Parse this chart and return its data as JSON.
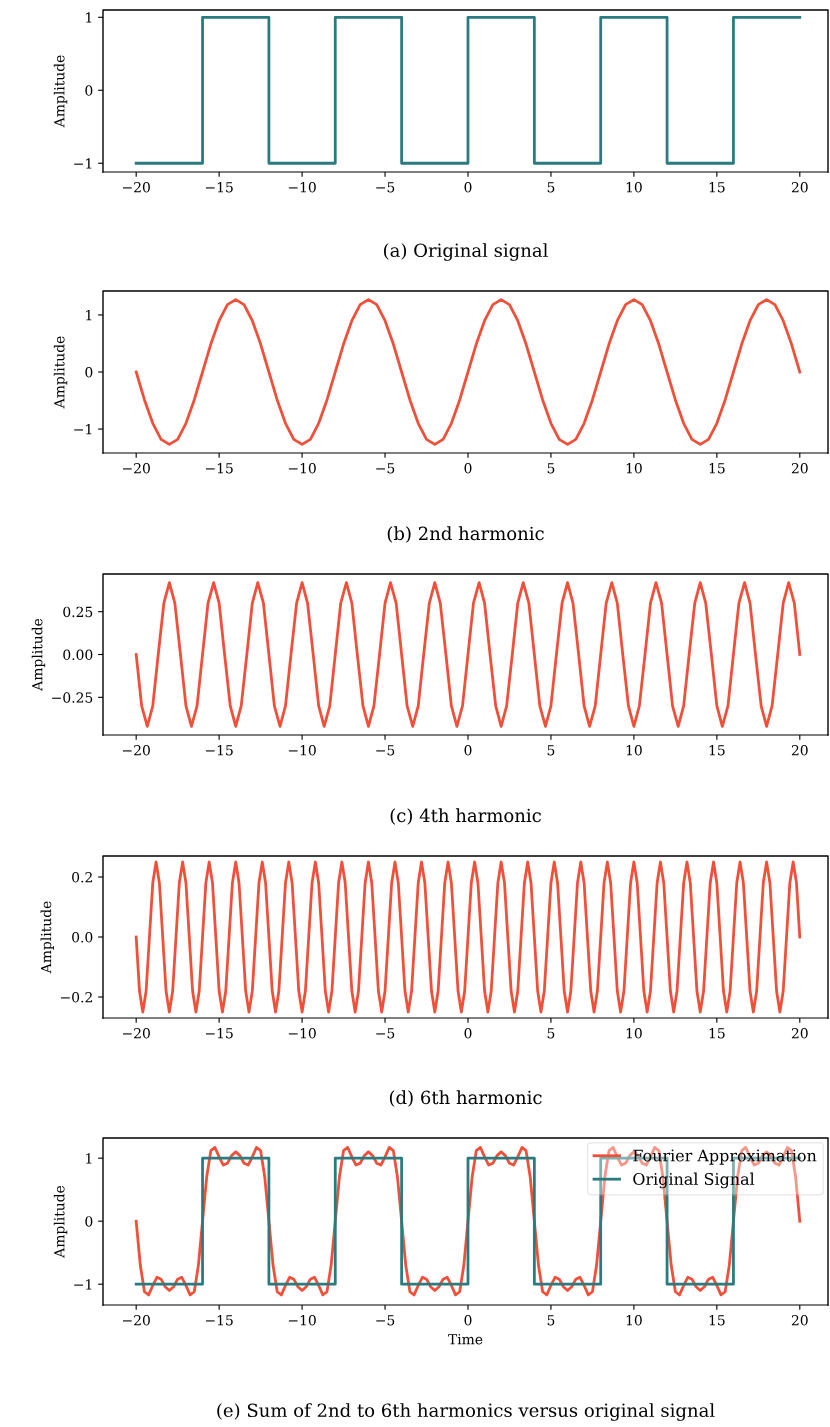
{
  "chart_data": [
    {
      "type": "step",
      "title": "(a) Original signal",
      "ylabel": "Amplitude",
      "xlim": [
        -22,
        21.7
      ],
      "ylim": [
        -1.12,
        1.1
      ],
      "xticks": [
        {
          "value": -20,
          "label": "−20"
        },
        {
          "value": -15,
          "label": "−15"
        },
        {
          "value": -10,
          "label": "−10"
        },
        {
          "value": -5,
          "label": "−5"
        },
        0,
        5,
        10,
        15,
        20
      ],
      "yticks": [
        {
          "value": -1,
          "label": "−1"
        },
        0,
        1
      ],
      "grid": false,
      "legend": false,
      "marker": "none",
      "line_style": "solid",
      "series": [
        {
          "color": "#2a7b7f",
          "x": [
            -20,
            -16,
            -12,
            -8,
            -4,
            0,
            4,
            8,
            12,
            16,
            20
          ],
          "values": [
            -1,
            1,
            -1,
            1,
            -1,
            1,
            -1,
            1,
            -1,
            1,
            1
          ]
        }
      ]
    },
    {
      "type": "line",
      "title": "(b) 2nd harmonic",
      "ylabel": "Amplitude",
      "xlim": [
        -22,
        21.7
      ],
      "ylim": [
        -1.42,
        1.42
      ],
      "xticks": [
        {
          "value": -20,
          "label": "−20"
        },
        {
          "value": -15,
          "label": "−15"
        },
        {
          "value": -10,
          "label": "−10"
        },
        {
          "value": -5,
          "label": "−5"
        },
        0,
        5,
        10,
        15,
        20
      ],
      "yticks": [
        {
          "value": -1,
          "label": "−1"
        },
        0,
        1
      ],
      "grid": false,
      "legend": false,
      "marker": "none",
      "line_style": "solid",
      "series": [
        {
          "color": "#f05039",
          "x": [
            -20,
            -19.5,
            -19,
            -18.5,
            -18,
            -17.5,
            -17,
            -16.5,
            -16,
            -15.5,
            -15,
            -14.5,
            -14,
            -13.5,
            -13,
            -12.5,
            -12,
            -11.5,
            -11,
            -10.5,
            -10,
            -9.5,
            -9,
            -8.5,
            -8,
            -7.5,
            -7,
            -6.5,
            -6,
            -5.5,
            -5,
            -4.5,
            -4,
            -3.5,
            -3,
            -2.5,
            -2,
            -1.5,
            -1,
            -0.5,
            0,
            0.5,
            1,
            1.5,
            2,
            2.5,
            3,
            3.5,
            4,
            4.5,
            5,
            5.5,
            6,
            6.5,
            7,
            7.5,
            8,
            8.5,
            9,
            9.5,
            10,
            10.5,
            11,
            11.5,
            12,
            12.5,
            13,
            13.5,
            14,
            14.5,
            15,
            15.5,
            16,
            16.5,
            17,
            17.5,
            18,
            18.5,
            19,
            19.5,
            20
          ],
          "values": [
            0,
            -0.49,
            -0.9,
            -1.18,
            -1.27,
            -1.18,
            -0.9,
            -0.49,
            0,
            0.49,
            0.9,
            1.18,
            1.27,
            1.18,
            0.9,
            0.49,
            0,
            -0.49,
            -0.9,
            -1.18,
            -1.27,
            -1.18,
            -0.9,
            -0.49,
            0,
            0.49,
            0.9,
            1.18,
            1.27,
            1.18,
            0.9,
            0.49,
            0,
            -0.49,
            -0.9,
            -1.18,
            -1.27,
            -1.18,
            -0.9,
            -0.49,
            0,
            0.49,
            0.9,
            1.18,
            1.27,
            1.18,
            0.9,
            0.49,
            0,
            -0.49,
            -0.9,
            -1.18,
            -1.27,
            -1.18,
            -0.9,
            -0.49,
            0,
            0.49,
            0.9,
            1.18,
            1.27,
            1.18,
            0.9,
            0.49,
            0,
            -0.49,
            -0.9,
            -1.18,
            -1.27,
            -1.18,
            -0.9,
            -0.49,
            0,
            0.49,
            0.9,
            1.18,
            1.27,
            1.18,
            0.9,
            0.49,
            0
          ]
        }
      ]
    },
    {
      "type": "line",
      "title": "(c) 4th harmonic",
      "ylabel": "Amplitude",
      "xlim": [
        -22,
        21.7
      ],
      "ylim": [
        -0.47,
        0.47
      ],
      "xticks": [
        {
          "value": -20,
          "label": "−20"
        },
        {
          "value": -15,
          "label": "−15"
        },
        {
          "value": -10,
          "label": "−10"
        },
        {
          "value": -5,
          "label": "−5"
        },
        0,
        5,
        10,
        15,
        20
      ],
      "yticks": [
        {
          "value": -0.25,
          "label": "−0.25"
        },
        {
          "value": 0,
          "label": "0.00"
        },
        0.25
      ],
      "grid": false,
      "legend": false,
      "marker": "none",
      "line_style": "solid",
      "series": [
        {
          "color": "#f05039",
          "x": [
            -20,
            -19.67,
            -19.33,
            -19,
            -18.67,
            -18.33,
            -18,
            -17.67,
            -17.33,
            -17,
            -16.67,
            -16.33,
            -16,
            -15.67,
            -15.33,
            -15,
            -14.67,
            -14.33,
            -14,
            -13.67,
            -13.33,
            -13,
            -12.67,
            -12.33,
            -12,
            -11.67,
            -11.33,
            -11,
            -10.67,
            -10.33,
            -10,
            -9.67,
            -9.33,
            -9,
            -8.67,
            -8.33,
            -8,
            -7.67,
            -7.33,
            -7,
            -6.67,
            -6.33,
            -6,
            -5.67,
            -5.33,
            -5,
            -4.67,
            -4.33,
            -4,
            -3.67,
            -3.33,
            -3,
            -2.67,
            -2.33,
            -2,
            -1.67,
            -1.33,
            -1,
            -0.67,
            -0.33,
            0,
            0.33,
            0.67,
            1,
            1.33,
            1.67,
            2,
            2.33,
            2.67,
            3,
            3.33,
            3.67,
            4,
            4.33,
            4.67,
            5,
            5.33,
            5.67,
            6,
            6.33,
            6.67,
            7,
            7.33,
            7.67,
            8,
            8.33,
            8.67,
            9,
            9.33,
            9.67,
            10,
            10.33,
            10.67,
            11,
            11.33,
            11.67,
            12,
            12.33,
            12.67,
            13,
            13.33,
            13.67,
            14,
            14.33,
            14.67,
            15,
            15.33,
            15.67,
            16,
            16.33,
            16.67,
            17,
            17.33,
            17.67,
            18,
            18.33,
            18.67,
            19,
            19.33,
            19.67,
            20
          ],
          "values": [
            0,
            -0.3,
            -0.42,
            -0.3,
            0,
            0.3,
            0.42,
            0.3,
            0,
            -0.3,
            -0.42,
            -0.3,
            0,
            0.3,
            0.42,
            0.3,
            0,
            -0.3,
            -0.42,
            -0.3,
            0,
            0.3,
            0.42,
            0.3,
            0,
            -0.3,
            -0.42,
            -0.3,
            0,
            0.3,
            0.42,
            0.3,
            0,
            -0.3,
            -0.42,
            -0.3,
            0,
            0.3,
            0.42,
            0.3,
            0,
            -0.3,
            -0.42,
            -0.3,
            0,
            0.3,
            0.42,
            0.3,
            0,
            -0.3,
            -0.42,
            -0.3,
            0,
            0.3,
            0.42,
            0.3,
            0,
            -0.3,
            -0.42,
            -0.3,
            0,
            0.3,
            0.42,
            0.3,
            0,
            -0.3,
            -0.42,
            -0.3,
            0,
            0.3,
            0.42,
            0.3,
            0,
            -0.3,
            -0.42,
            -0.3,
            0,
            0.3,
            0.42,
            0.3,
            0,
            -0.3,
            -0.42,
            -0.3,
            0,
            0.3,
            0.42,
            0.3,
            0,
            -0.3,
            -0.42,
            -0.3,
            0,
            0.3,
            0.42,
            0.3,
            0,
            -0.3,
            -0.42,
            -0.3,
            0,
            0.3,
            0.42,
            0.3,
            0,
            -0.3,
            -0.42,
            -0.3,
            0,
            0.3,
            0.42,
            0.3,
            0,
            -0.3,
            -0.42,
            -0.3,
            0,
            0.3,
            0.42,
            0.3,
            0
          ]
        }
      ]
    },
    {
      "type": "line",
      "title": "(d) 6th harmonic",
      "ylabel": "Amplitude",
      "xlim": [
        -22,
        21.7
      ],
      "ylim": [
        -0.27,
        0.27
      ],
      "xticks": [
        {
          "value": -20,
          "label": "−20"
        },
        {
          "value": -15,
          "label": "−15"
        },
        {
          "value": -10,
          "label": "−10"
        },
        {
          "value": -5,
          "label": "−5"
        },
        0,
        5,
        10,
        15,
        20
      ],
      "yticks": [
        {
          "value": -0.2,
          "label": "−0.2"
        },
        {
          "value": 0,
          "label": "0.0"
        },
        0.2
      ],
      "grid": false,
      "legend": false,
      "marker": "none",
      "line_style": "solid",
      "series": [
        {
          "color": "#f05039",
          "x": [
            -20,
            -19.8,
            -19.6,
            -19.4,
            -19.2,
            -19,
            -18.8,
            -18.6,
            -18.4,
            -18.2,
            -18,
            -17.8,
            -17.6,
            -17.4,
            -17.2,
            -17,
            -16.8,
            -16.6,
            -16.4,
            -16.2,
            -16,
            -15.8,
            -15.6,
            -15.4,
            -15.2,
            -15,
            -14.8,
            -14.6,
            -14.4,
            -14.2,
            -14,
            -13.8,
            -13.6,
            -13.4,
            -13.2,
            -13,
            -12.8,
            -12.6,
            -12.4,
            -12.2,
            -12,
            -11.8,
            -11.6,
            -11.4,
            -11.2,
            -11,
            -10.8,
            -10.6,
            -10.4,
            -10.2,
            -10,
            -9.8,
            -9.6,
            -9.4,
            -9.2,
            -9,
            -8.8,
            -8.6,
            -8.4,
            -8.2,
            -8,
            -7.8,
            -7.6,
            -7.4,
            -7.2,
            -7,
            -6.8,
            -6.6,
            -6.4,
            -6.2,
            -6,
            -5.8,
            -5.6,
            -5.4,
            -5.2,
            -5,
            -4.8,
            -4.6,
            -4.4,
            -4.2,
            -4,
            -3.8,
            -3.6,
            -3.4,
            -3.2,
            -3,
            -2.8,
            -2.6,
            -2.4,
            -2.2,
            -2,
            -1.8,
            -1.6,
            -1.4,
            -1.2,
            -1,
            -0.8,
            -0.6,
            -0.4,
            -0.2,
            0,
            0.2,
            0.4,
            0.6,
            0.8,
            1,
            1.2,
            1.4,
            1.6,
            1.8,
            2,
            2.2,
            2.4,
            2.6,
            2.8,
            3,
            3.2,
            3.4,
            3.6,
            3.8,
            4,
            4.2,
            4.4,
            4.6,
            4.8,
            5,
            5.2,
            5.4,
            5.6,
            5.8,
            6,
            6.2,
            6.4,
            6.6,
            6.8,
            7,
            7.2,
            7.4,
            7.6,
            7.8,
            8,
            8.2,
            8.4,
            8.6,
            8.8,
            9,
            9.2,
            9.4,
            9.6,
            9.8,
            10,
            10.2,
            10.4,
            10.6,
            10.8,
            11,
            11.2,
            11.4,
            11.6,
            11.8,
            12,
            12.2,
            12.4,
            12.6,
            12.8,
            13,
            13.2,
            13.4,
            13.6,
            13.8,
            14,
            14.2,
            14.4,
            14.6,
            14.8,
            15,
            15.2,
            15.4,
            15.6,
            15.8,
            16,
            16.2,
            16.4,
            16.6,
            16.8,
            17,
            17.2,
            17.4,
            17.6,
            17.8,
            18,
            18.2,
            18.4,
            18.6,
            18.8,
            19,
            19.2,
            19.4,
            19.6,
            19.8,
            20
          ],
          "values": [
            0,
            -0.18,
            -0.25,
            -0.18,
            0,
            0.18,
            0.25,
            0.18,
            0,
            -0.18,
            -0.25,
            -0.18,
            0,
            0.18,
            0.25,
            0.18,
            0,
            -0.18,
            -0.25,
            -0.18,
            0,
            0.18,
            0.25,
            0.18,
            0,
            -0.18,
            -0.25,
            -0.18,
            0,
            0.18,
            0.25,
            0.18,
            0,
            -0.18,
            -0.25,
            -0.18,
            0,
            0.18,
            0.25,
            0.18,
            0,
            -0.18,
            -0.25,
            -0.18,
            0,
            0.18,
            0.25,
            0.18,
            0,
            -0.18,
            -0.25,
            -0.18,
            0,
            0.18,
            0.25,
            0.18,
            0,
            -0.18,
            -0.25,
            -0.18,
            0,
            0.18,
            0.25,
            0.18,
            0,
            -0.18,
            -0.25,
            -0.18,
            0,
            0.18,
            0.25,
            0.18,
            0,
            -0.18,
            -0.25,
            -0.18,
            0,
            0.18,
            0.25,
            0.18,
            0,
            -0.18,
            -0.25,
            -0.18,
            0,
            0.18,
            0.25,
            0.18,
            0,
            -0.18,
            -0.25,
            -0.18,
            0,
            0.18,
            0.25,
            0.18,
            0,
            -0.18,
            -0.25,
            -0.18,
            0,
            0.18,
            0.25,
            0.18,
            0,
            -0.18,
            -0.25,
            -0.18,
            0,
            0.18,
            0.25,
            0.18,
            0,
            -0.18,
            -0.25,
            -0.18,
            0,
            0.18,
            0.25,
            0.18,
            0,
            -0.18,
            -0.25,
            -0.18,
            0,
            0.18,
            0.25,
            0.18,
            0,
            -0.18,
            -0.25,
            -0.18,
            0,
            0.18,
            0.25,
            0.18,
            0,
            -0.18,
            -0.25,
            -0.18,
            0,
            0.18,
            0.25,
            0.18,
            0,
            -0.18,
            -0.25,
            -0.18,
            0,
            0.18,
            0.25,
            0.18,
            0,
            -0.18,
            -0.25,
            -0.18,
            0,
            0.18,
            0.25,
            0.18,
            0,
            -0.18,
            -0.25,
            -0.18,
            0,
            0.18,
            0.25,
            0.18,
            0,
            -0.18,
            -0.25,
            -0.18,
            0,
            0.18,
            0.25,
            0.18,
            0,
            -0.18,
            -0.25,
            -0.18,
            0,
            0.18,
            0.25,
            0.18,
            0,
            -0.18,
            -0.25,
            -0.18,
            0,
            0.18,
            0.25,
            0.18,
            0,
            -0.18,
            -0.25,
            -0.18,
            0,
            0.18,
            0.25,
            0.18,
            0
          ]
        }
      ]
    },
    {
      "type": "line",
      "title": "(e) Sum of 2nd to 6th harmonics versus original signal",
      "xlabel": "Time",
      "ylabel": "Amplitude",
      "xlim": [
        -22,
        21.7
      ],
      "ylim": [
        -1.33,
        1.32
      ],
      "xticks": [
        {
          "value": -20,
          "label": "−20"
        },
        {
          "value": -15,
          "label": "−15"
        },
        {
          "value": -10,
          "label": "−10"
        },
        {
          "value": -5,
          "label": "−5"
        },
        0,
        5,
        10,
        15,
        20
      ],
      "yticks": [
        {
          "value": -1,
          "label": "−1"
        },
        0,
        1
      ],
      "grid": false,
      "legend": "top right",
      "marker": "none",
      "line_style": "solid",
      "series": [
        {
          "name": "Fourier Approximation",
          "color": "#f05039",
          "x": [
            -20,
            -19.75,
            -19.5,
            -19.25,
            -19,
            -18.75,
            -18.5,
            -18.25,
            -18,
            -17.75,
            -17.5,
            -17.25,
            -17,
            -16.75,
            -16.5,
            -16.25,
            -16,
            -15.75,
            -15.5,
            -15.25,
            -15,
            -14.75,
            -14.5,
            -14.25,
            -14,
            -13.75,
            -13.5,
            -13.25,
            -13,
            -12.75,
            -12.5,
            -12.25,
            -12,
            -11.75,
            -11.5,
            -11.25,
            -11,
            -10.75,
            -10.5,
            -10.25,
            -10,
            -9.75,
            -9.5,
            -9.25,
            -9,
            -8.75,
            -8.5,
            -8.25,
            -8,
            -7.75,
            -7.5,
            -7.25,
            -7,
            -6.75,
            -6.5,
            -6.25,
            -6,
            -5.75,
            -5.5,
            -5.25,
            -5,
            -4.75,
            -4.5,
            -4.25,
            -4,
            -3.75,
            -3.5,
            -3.25,
            -3,
            -2.75,
            -2.5,
            -2.25,
            -2,
            -1.75,
            -1.5,
            -1.25,
            -1,
            -0.75,
            -0.5,
            -0.25,
            0,
            0.25,
            0.5,
            0.75,
            1,
            1.25,
            1.5,
            1.75,
            2,
            2.25,
            2.5,
            2.75,
            3,
            3.25,
            3.5,
            3.75,
            4,
            4.25,
            4.5,
            4.75,
            5,
            5.25,
            5.5,
            5.75,
            6,
            6.25,
            6.5,
            6.75,
            7,
            7.25,
            7.5,
            7.75,
            8,
            8.25,
            8.5,
            8.75,
            9,
            9.25,
            9.5,
            9.75,
            10,
            10.25,
            10.5,
            10.75,
            11,
            11.25,
            11.5,
            11.75,
            12,
            12.25,
            12.5,
            12.75,
            13,
            13.25,
            13.5,
            13.75,
            14,
            14.25,
            14.5,
            14.75,
            15,
            15.25,
            15.5,
            15.75,
            16,
            16.25,
            16.5,
            16.75,
            17,
            17.25,
            17.5,
            17.75,
            18,
            18.25,
            18.5,
            18.75,
            19,
            19.25,
            19.5,
            19.75,
            20
          ],
          "values": [
            0,
            -0.7,
            -1.12,
            -1.17,
            -1.02,
            -0.89,
            -0.92,
            -1.04,
            -1.1,
            -1.04,
            -0.92,
            -0.89,
            -1.02,
            -1.17,
            -1.12,
            -0.7,
            0,
            0.7,
            1.12,
            1.17,
            1.02,
            0.89,
            0.92,
            1.04,
            1.1,
            1.04,
            0.92,
            0.89,
            1.02,
            1.17,
            1.12,
            0.7,
            0,
            -0.7,
            -1.12,
            -1.17,
            -1.02,
            -0.89,
            -0.92,
            -1.04,
            -1.1,
            -1.04,
            -0.92,
            -0.89,
            -1.02,
            -1.17,
            -1.12,
            -0.7,
            0,
            0.7,
            1.12,
            1.17,
            1.02,
            0.89,
            0.92,
            1.04,
            1.1,
            1.04,
            0.92,
            0.89,
            1.02,
            1.17,
            1.12,
            0.7,
            0,
            -0.7,
            -1.12,
            -1.17,
            -1.02,
            -0.89,
            -0.92,
            -1.04,
            -1.1,
            -1.04,
            -0.92,
            -0.89,
            -1.02,
            -1.17,
            -1.12,
            -0.7,
            0,
            0.7,
            1.12,
            1.17,
            1.02,
            0.89,
            0.92,
            1.04,
            1.1,
            1.04,
            0.92,
            0.89,
            1.02,
            1.17,
            1.12,
            0.7,
            0,
            -0.7,
            -1.12,
            -1.17,
            -1.02,
            -0.89,
            -0.92,
            -1.04,
            -1.1,
            -1.04,
            -0.92,
            -0.89,
            -1.02,
            -1.17,
            -1.12,
            -0.7,
            0,
            0.7,
            1.12,
            1.17,
            1.02,
            0.89,
            0.92,
            1.04,
            1.1,
            1.04,
            0.92,
            0.89,
            1.02,
            1.17,
            1.12,
            0.7,
            0,
            -0.7,
            -1.12,
            -1.17,
            -1.02,
            -0.89,
            -0.92,
            -1.04,
            -1.1,
            -1.04,
            -0.92,
            -0.89,
            -1.02,
            -1.17,
            -1.12,
            -0.7,
            0,
            0.7,
            1.12,
            1.17,
            1.02,
            0.89,
            0.92,
            1.04,
            1.1,
            1.04,
            0.92,
            0.89,
            1.02,
            1.17,
            1.12,
            0.7,
            0
          ]
        },
        {
          "name": "Original Signal",
          "type": "step",
          "color": "#2a7b7f",
          "x": [
            -20,
            -16,
            -12,
            -8,
            -4,
            0,
            4,
            8,
            12,
            16,
            20
          ],
          "values": [
            -1,
            1,
            -1,
            1,
            -1,
            1,
            -1,
            1,
            -1,
            1,
            1
          ]
        }
      ]
    }
  ]
}
